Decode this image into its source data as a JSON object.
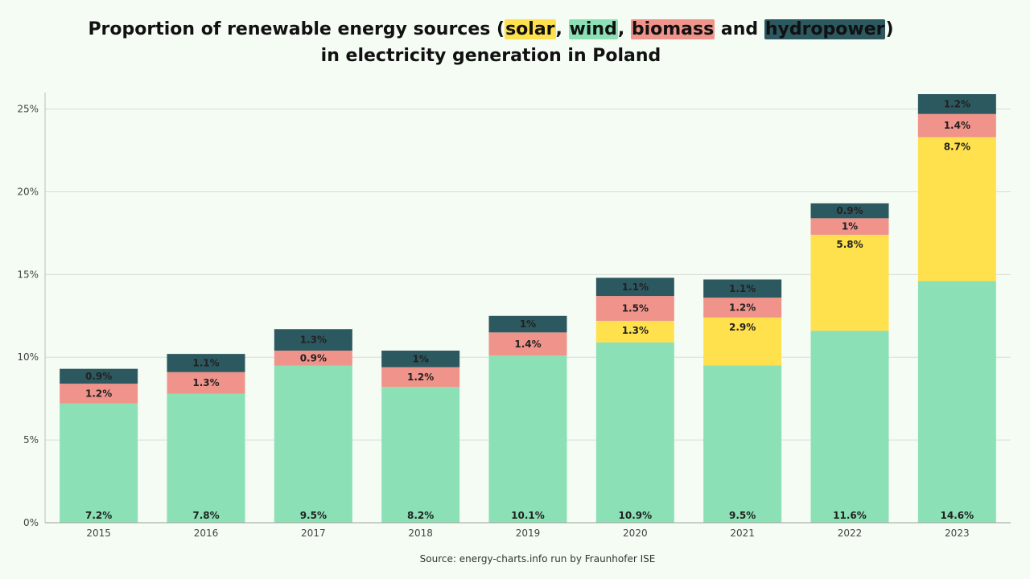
{
  "title": {
    "prefix": "Proportion of renewable energy sources (",
    "solar": "solar",
    "sep1": ", ",
    "wind": "wind",
    "sep2": ", ",
    "biomass": "biomass",
    "and": " and ",
    "hydro": "hydropower",
    "suffix": ")",
    "line2": "in electricity generation in Poland"
  },
  "source": "Source: energy-charts.info run by Fraunhofer ISE",
  "colors": {
    "wind": "#8be0b6",
    "solar": "#ffe14d",
    "biomass": "#f0938a",
    "hydro": "#2c5860",
    "background": "#f5fcf4",
    "grid": "#d8ddd8"
  },
  "chart_data": {
    "type": "bar",
    "stacked": true,
    "categories": [
      "2015",
      "2016",
      "2017",
      "2018",
      "2019",
      "2020",
      "2021",
      "2022",
      "2023"
    ],
    "series": [
      {
        "key": "wind",
        "values": [
          7.2,
          7.8,
          9.5,
          8.2,
          10.1,
          10.9,
          9.5,
          11.6,
          14.6
        ],
        "labels": [
          "7.2%",
          "7.8%",
          "9.5%",
          "8.2%",
          "10.1%",
          "10.9%",
          "9.5%",
          "11.6%",
          "14.6%"
        ]
      },
      {
        "key": "solar",
        "values": [
          0,
          0,
          0,
          0,
          0,
          1.3,
          2.9,
          5.8,
          8.7
        ],
        "labels": [
          "",
          "",
          "",
          "",
          "",
          "1.3%",
          "2.9%",
          "5.8%",
          "8.7%"
        ]
      },
      {
        "key": "biomass",
        "values": [
          1.2,
          1.3,
          0.9,
          1.2,
          1.4,
          1.5,
          1.2,
          1.0,
          1.4
        ],
        "labels": [
          "1.2%",
          "1.3%",
          "0.9%",
          "1.2%",
          "1.4%",
          "1.5%",
          "1.2%",
          "1%",
          "1.4%"
        ]
      },
      {
        "key": "hydro",
        "values": [
          0.9,
          1.1,
          1.3,
          1.0,
          1.0,
          1.1,
          1.1,
          0.9,
          1.2
        ],
        "labels": [
          "0.9%",
          "1.1%",
          "1.3%",
          "1%",
          "1%",
          "1.1%",
          "1.1%",
          "0.9%",
          "1.2%"
        ]
      }
    ],
    "yticks": [
      0,
      5,
      10,
      15,
      20,
      25
    ],
    "ytick_labels": [
      "0%",
      "5%",
      "10%",
      "15%",
      "20%",
      "25%"
    ],
    "ylim": [
      0,
      26
    ],
    "grid": true,
    "xlabel": "",
    "ylabel": ""
  }
}
